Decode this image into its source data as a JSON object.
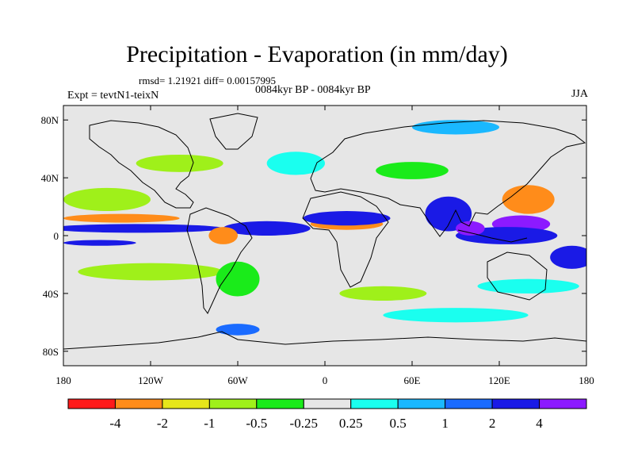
{
  "title": "Precipitation - Evaporation (in mm/day)",
  "stats": "rmsd= 1.21921 diff= 0.00157995",
  "period": "0084kyr BP - 0084kyr BP",
  "experiment": "Expt = tevtN1-teixN",
  "season": "JJA",
  "chart_data": {
    "type": "heatmap",
    "projection": "cylindrical equidistant world map with coastlines",
    "x_range": [
      -180,
      180
    ],
    "y_range": [
      -90,
      90
    ],
    "x_ticks": [
      {
        "value": -180,
        "label": "180"
      },
      {
        "value": -120,
        "label": "120W"
      },
      {
        "value": -60,
        "label": "60W"
      },
      {
        "value": 0,
        "label": "0"
      },
      {
        "value": 60,
        "label": "60E"
      },
      {
        "value": 120,
        "label": "120E"
      },
      {
        "value": 180,
        "label": "180"
      }
    ],
    "y_ticks": [
      {
        "value": 80,
        "label": "80N"
      },
      {
        "value": 40,
        "label": "40N"
      },
      {
        "value": 0,
        "label": "0"
      },
      {
        "value": -40,
        "label": "40S"
      },
      {
        "value": -80,
        "label": "80S"
      }
    ],
    "colorbar": {
      "colors": [
        "#ff1a1a",
        "#ff8c1a",
        "#e6e61a",
        "#9ff01a",
        "#1aeb1a",
        "#e6e6e6",
        "#1affef",
        "#1ab8ff",
        "#1a6bff",
        "#1a1ae6",
        "#8c1aff"
      ],
      "labels": [
        "-4",
        "-2",
        "-1",
        "-0.5",
        "-0.25",
        "0.25",
        "0.5",
        "1",
        "2",
        "4"
      ]
    },
    "regions": [
      {
        "lon": 85,
        "lat": 15,
        "rx": 16,
        "ry": 12,
        "cls": 9
      },
      {
        "lon": 135,
        "lat": 8,
        "rx": 20,
        "ry": 6,
        "cls": 10
      },
      {
        "lon": 140,
        "lat": 25,
        "rx": 18,
        "ry": 10,
        "cls": 1
      },
      {
        "lon": 125,
        "lat": 0,
        "rx": 35,
        "ry": 6,
        "cls": 9
      },
      {
        "lon": -130,
        "lat": 5,
        "rx": 60,
        "ry": 3,
        "cls": 9
      },
      {
        "lon": -40,
        "lat": 5,
        "rx": 30,
        "ry": 5,
        "cls": 9
      },
      {
        "lon": 15,
        "lat": 8,
        "rx": 25,
        "ry": 4,
        "cls": 1
      },
      {
        "lon": 15,
        "lat": 12,
        "rx": 30,
        "ry": 5,
        "cls": 9
      },
      {
        "lon": -70,
        "lat": 0,
        "rx": 10,
        "ry": 6,
        "cls": 1
      },
      {
        "lon": -140,
        "lat": 12,
        "rx": 40,
        "ry": 3,
        "cls": 1
      },
      {
        "lon": -155,
        "lat": -5,
        "rx": 25,
        "ry": 2,
        "cls": 9
      },
      {
        "lon": -150,
        "lat": 25,
        "rx": 30,
        "ry": 8,
        "cls": 3
      },
      {
        "lon": -120,
        "lat": -25,
        "rx": 50,
        "ry": 6,
        "cls": 3
      },
      {
        "lon": 40,
        "lat": -40,
        "rx": 30,
        "ry": 5,
        "cls": 3
      },
      {
        "lon": 140,
        "lat": -35,
        "rx": 35,
        "ry": 5,
        "cls": 6
      },
      {
        "lon": 90,
        "lat": -55,
        "rx": 50,
        "ry": 5,
        "cls": 6
      },
      {
        "lon": -60,
        "lat": -65,
        "rx": 15,
        "ry": 4,
        "cls": 8
      },
      {
        "lon": -100,
        "lat": 50,
        "rx": 30,
        "ry": 6,
        "cls": 3
      },
      {
        "lon": -20,
        "lat": 50,
        "rx": 20,
        "ry": 8,
        "cls": 6
      },
      {
        "lon": 90,
        "lat": 75,
        "rx": 30,
        "ry": 5,
        "cls": 7
      },
      {
        "lon": 60,
        "lat": 45,
        "rx": 25,
        "ry": 6,
        "cls": 4
      },
      {
        "lon": 170,
        "lat": -15,
        "rx": 15,
        "ry": 8,
        "cls": 9
      },
      {
        "lon": 100,
        "lat": 5,
        "rx": 10,
        "ry": 5,
        "cls": 10
      },
      {
        "lon": -60,
        "lat": -30,
        "rx": 15,
        "ry": 12,
        "cls": 4
      }
    ]
  }
}
